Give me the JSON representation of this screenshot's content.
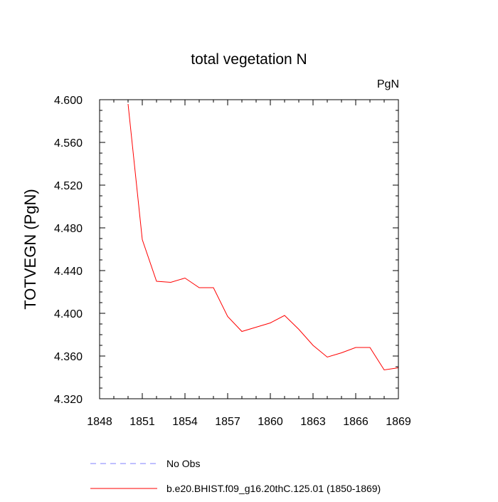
{
  "chart_data": {
    "type": "line",
    "title": "total vegetation N",
    "units_label": "PgN",
    "xlabel": "",
    "ylabel": "TOTVEGN  (PgN)",
    "xlim": [
      1848,
      1869
    ],
    "ylim": [
      4.32,
      4.6
    ],
    "x_ticks": [
      1848,
      1851,
      1854,
      1857,
      1860,
      1863,
      1866,
      1869
    ],
    "x_tick_labels": [
      "1848",
      "1851",
      "1854",
      "1857",
      "1860",
      "1863",
      "1866",
      "1869"
    ],
    "y_ticks": [
      4.32,
      4.36,
      4.4,
      4.44,
      4.48,
      4.52,
      4.56,
      4.6
    ],
    "y_tick_labels": [
      "4.320",
      "4.360",
      "4.400",
      "4.440",
      "4.480",
      "4.520",
      "4.560",
      "4.600"
    ],
    "grid": false,
    "legend_position": "bottom",
    "series": [
      {
        "name": "b.e20.BHIST.f09_g16.20thC.125.01 (1850-1869)",
        "color": "#ff0000",
        "style": "solid",
        "x": [
          1850,
          1851,
          1852,
          1853,
          1854,
          1855,
          1856,
          1857,
          1858,
          1859,
          1860,
          1861,
          1862,
          1863,
          1864,
          1865,
          1866,
          1867,
          1868,
          1869
        ],
        "values": [
          4.596,
          4.469,
          4.43,
          4.429,
          4.433,
          4.424,
          4.424,
          4.397,
          4.383,
          4.387,
          4.391,
          4.398,
          4.385,
          4.37,
          4.359,
          4.363,
          4.368,
          4.368,
          4.347,
          4.349
        ]
      }
    ],
    "legend": [
      {
        "label": "No Obs",
        "color": "#7f7fff",
        "style": "dashed"
      },
      {
        "label": "b.e20.BHIST.f09_g16.20thC.125.01 (1850-1869)",
        "color": "#ff0000",
        "style": "solid"
      }
    ]
  }
}
